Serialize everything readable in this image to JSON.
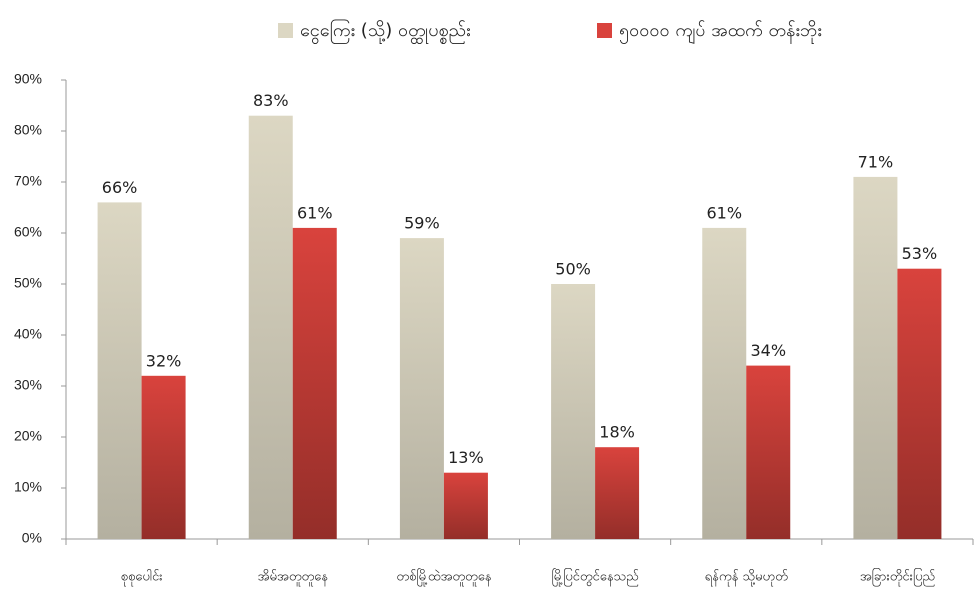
{
  "chart_data": {
    "type": "bar",
    "categories": [
      "စုစုပေါင်း",
      "အိမ်အတူတူနေ",
      "တစ်မြို့ထဲအတူတူနေ",
      "မြို့ပြင်တွင်နေသည်",
      "ရန်ကုန် သို့မဟုတ်",
      "အခြားတိုင်းပြည်"
    ],
    "series": [
      {
        "name": "ငွေကြေး (သို့) ဝတ္ထုပစ္စည်း",
        "color": "#dcd7c3",
        "values": [
          66,
          83,
          59,
          50,
          61,
          71
        ],
        "value_labels": [
          "66%",
          "83%",
          "59%",
          "50%",
          "61%",
          "71%"
        ]
      },
      {
        "name": "၅၀၀၀၀ ကျပ် အထက် တန်းဘိုး",
        "color": "#d9433d",
        "values": [
          32,
          61,
          13,
          18,
          34,
          53
        ],
        "value_labels": [
          "32%",
          "61%",
          "13%",
          "18%",
          "34%",
          "53%"
        ]
      }
    ],
    "ylim": [
      0,
      90
    ],
    "yticks": [
      {
        "value": 0,
        "label": "0%"
      },
      {
        "value": 10,
        "label": "10%"
      },
      {
        "value": 20,
        "label": "20%"
      },
      {
        "value": 30,
        "label": "30%"
      },
      {
        "value": 40,
        "label": "40%"
      },
      {
        "value": 50,
        "label": "50%"
      },
      {
        "value": 60,
        "label": "60%"
      },
      {
        "value": 70,
        "label": "70%"
      },
      {
        "value": 80,
        "label": "80%"
      },
      {
        "value": 90,
        "label": "90%"
      }
    ],
    "legend": "top"
  }
}
